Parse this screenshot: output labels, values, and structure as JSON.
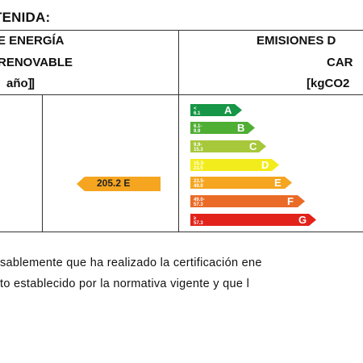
{
  "section_title": "TENIDA:",
  "col1_header": {
    "line1": "E ENERGÍA",
    "line2": "RENOVABLE",
    "line3": "año]"
  },
  "col2_header": {
    "line1": "EMISIONES D",
    "line2": "CAR",
    "line3": "[kgCO2"
  },
  "indicator": {
    "value": "205.2 E",
    "color": "#f5a51f"
  },
  "scale": [
    {
      "letter": "A",
      "range": "< 6.1",
      "color": "#169646"
    },
    {
      "letter": "B",
      "range": "6.1-9.9",
      "color": "#4fae34"
    },
    {
      "letter": "C",
      "range": "9.9-15.3",
      "color": "#a6c83a"
    },
    {
      "letter": "D",
      "range": "15.3-23.5",
      "color": "#f3ec1c"
    },
    {
      "letter": "E",
      "range": "23.5-49.0",
      "color": "#f5a51f"
    },
    {
      "letter": "F",
      "range": "49.0-57.3",
      "color": "#ea6a27"
    },
    {
      "letter": "G",
      "range": "≥ 57.3",
      "color": "#e2231a"
    }
  ],
  "paragraph": {
    "line1": "sablemente que ha realizado la certificación ene",
    "line2": "to establecido por la normativa vigente y que l"
  }
}
